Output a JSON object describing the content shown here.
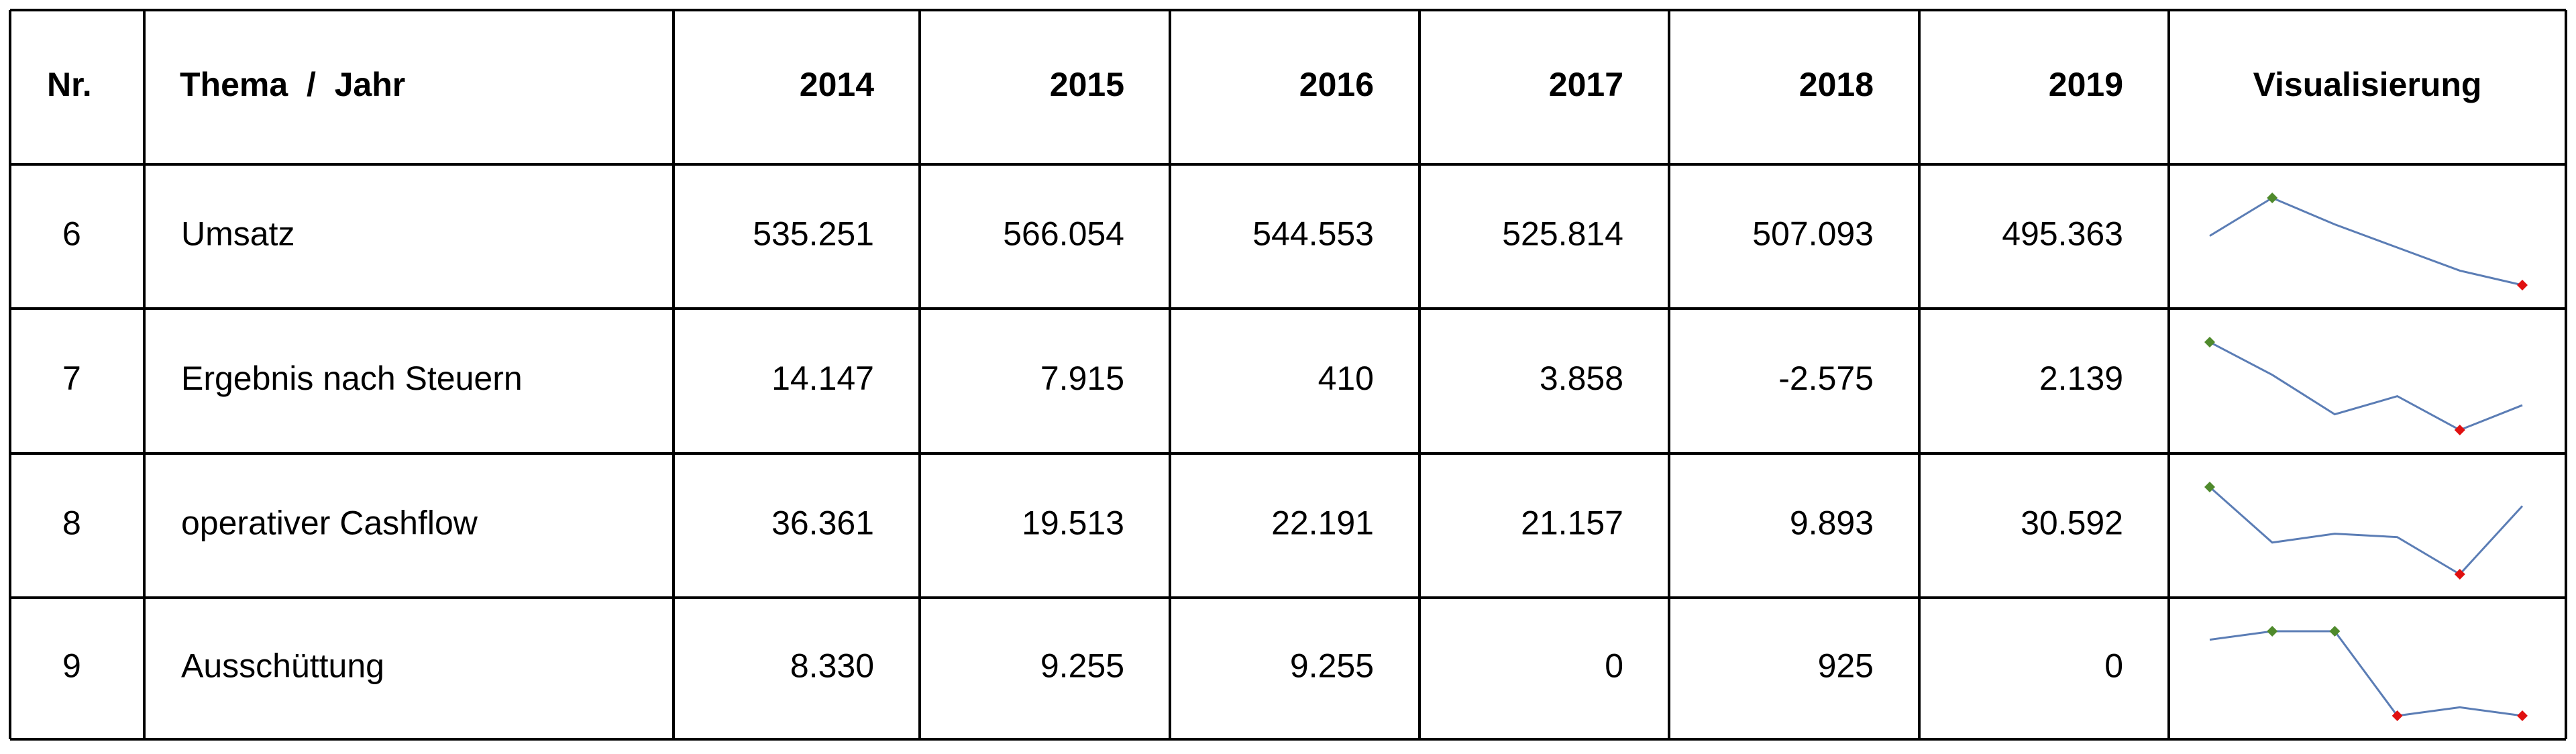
{
  "header": {
    "nr": "Nr.",
    "topic": "Thema  /  Jahr",
    "years": [
      "2014",
      "2015",
      "2016",
      "2017",
      "2018",
      "2019"
    ],
    "visualization": "Visualisierung"
  },
  "sparkline": {
    "line_color": "#5b7db5",
    "high_color": "#4f8a2c",
    "low_color": "#e01010"
  },
  "rows": [
    {
      "nr": "6",
      "topic": "Umsatz",
      "values": [
        535251,
        566054,
        544553,
        525814,
        507093,
        495363
      ],
      "value_labels": [
        "535.251",
        "566.054",
        "544.553",
        "525.814",
        "507.093",
        "495.363"
      ]
    },
    {
      "nr": "7",
      "topic": "Ergebnis nach Steuern",
      "values": [
        14147,
        7915,
        410,
        3858,
        -2575,
        2139
      ],
      "value_labels": [
        "14.147",
        "7.915",
        "410",
        "3.858",
        "-2.575",
        "2.139"
      ]
    },
    {
      "nr": "8",
      "topic": "operativer Cashflow",
      "values": [
        36361,
        19513,
        22191,
        21157,
        9893,
        30592
      ],
      "value_labels": [
        "36.361",
        "19.513",
        "22.191",
        "21.157",
        "9.893",
        "30.592"
      ]
    },
    {
      "nr": "9",
      "topic": "Ausschüttung",
      "values": [
        8330,
        9255,
        9255,
        0,
        925,
        0
      ],
      "value_labels": [
        "8.330",
        "9.255",
        "9.255",
        "0",
        "925",
        "0"
      ]
    }
  ]
}
